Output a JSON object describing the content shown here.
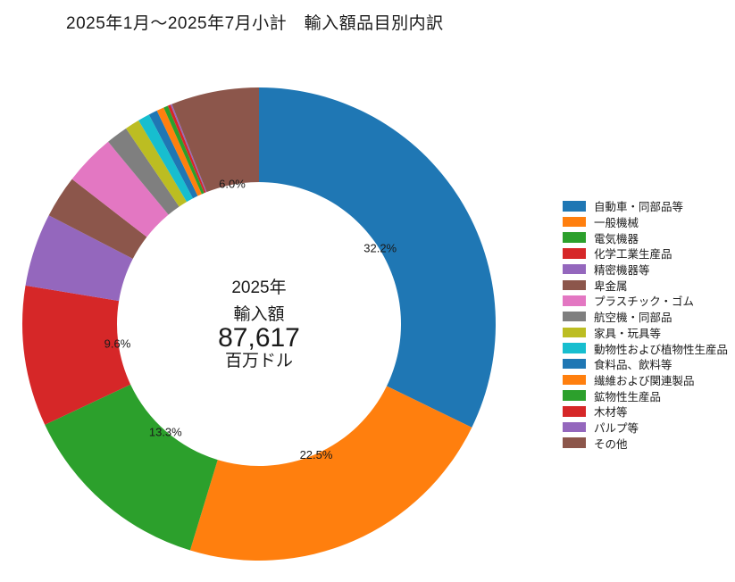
{
  "chart_data": {
    "type": "pie",
    "donut": true,
    "inner_radius_ratio": 0.6,
    "start_angle": "top",
    "direction": "clockwise",
    "legend_position": "right",
    "title": "2025年1月～2025年7月小計　輸入額品目別内訳",
    "center_text": {
      "year": "2025年",
      "label": "輸入額",
      "value": "87,617",
      "unit": "百万ドル"
    },
    "slices": [
      {
        "label": "自動車・同部品等",
        "value": 32.2,
        "pct_label": "32.2%",
        "color": "#1f77b4"
      },
      {
        "label": "一般機械",
        "value": 22.5,
        "pct_label": "22.5%",
        "color": "#ff7f0e"
      },
      {
        "label": "電気機器",
        "value": 13.3,
        "pct_label": "13.3%",
        "color": "#2ca02c"
      },
      {
        "label": "化学工業生産品",
        "value": 9.6,
        "pct_label": "9.6%",
        "color": "#d62728"
      },
      {
        "label": "精密機器等",
        "value": 5.0,
        "pct_label": null,
        "color": "#9467bd"
      },
      {
        "label": "卑金属",
        "value": 2.9,
        "pct_label": null,
        "color": "#8c564b"
      },
      {
        "label": "プラスチック・ゴム",
        "value": 3.5,
        "pct_label": null,
        "color": "#e377c2"
      },
      {
        "label": "航空機・同部品",
        "value": 1.5,
        "pct_label": null,
        "color": "#7f7f7f"
      },
      {
        "label": "家具・玩具等",
        "value": 1.0,
        "pct_label": null,
        "color": "#bcbd22"
      },
      {
        "label": "動物性および植物性生産品",
        "value": 0.8,
        "pct_label": null,
        "color": "#17becf"
      },
      {
        "label": "食料品、飲料等",
        "value": 0.6,
        "pct_label": null,
        "color": "#1f77b4"
      },
      {
        "label": "繊維および関連製品",
        "value": 0.5,
        "pct_label": null,
        "color": "#ff7f0e"
      },
      {
        "label": "鉱物性生産品",
        "value": 0.3,
        "pct_label": null,
        "color": "#2ca02c"
      },
      {
        "label": "木材等",
        "value": 0.2,
        "pct_label": null,
        "color": "#d62728"
      },
      {
        "label": "パルプ等",
        "value": 0.1,
        "pct_label": null,
        "color": "#9467bd"
      },
      {
        "label": "その他",
        "value": 6.0,
        "pct_label": "6.0%",
        "color": "#8c564b"
      }
    ]
  }
}
